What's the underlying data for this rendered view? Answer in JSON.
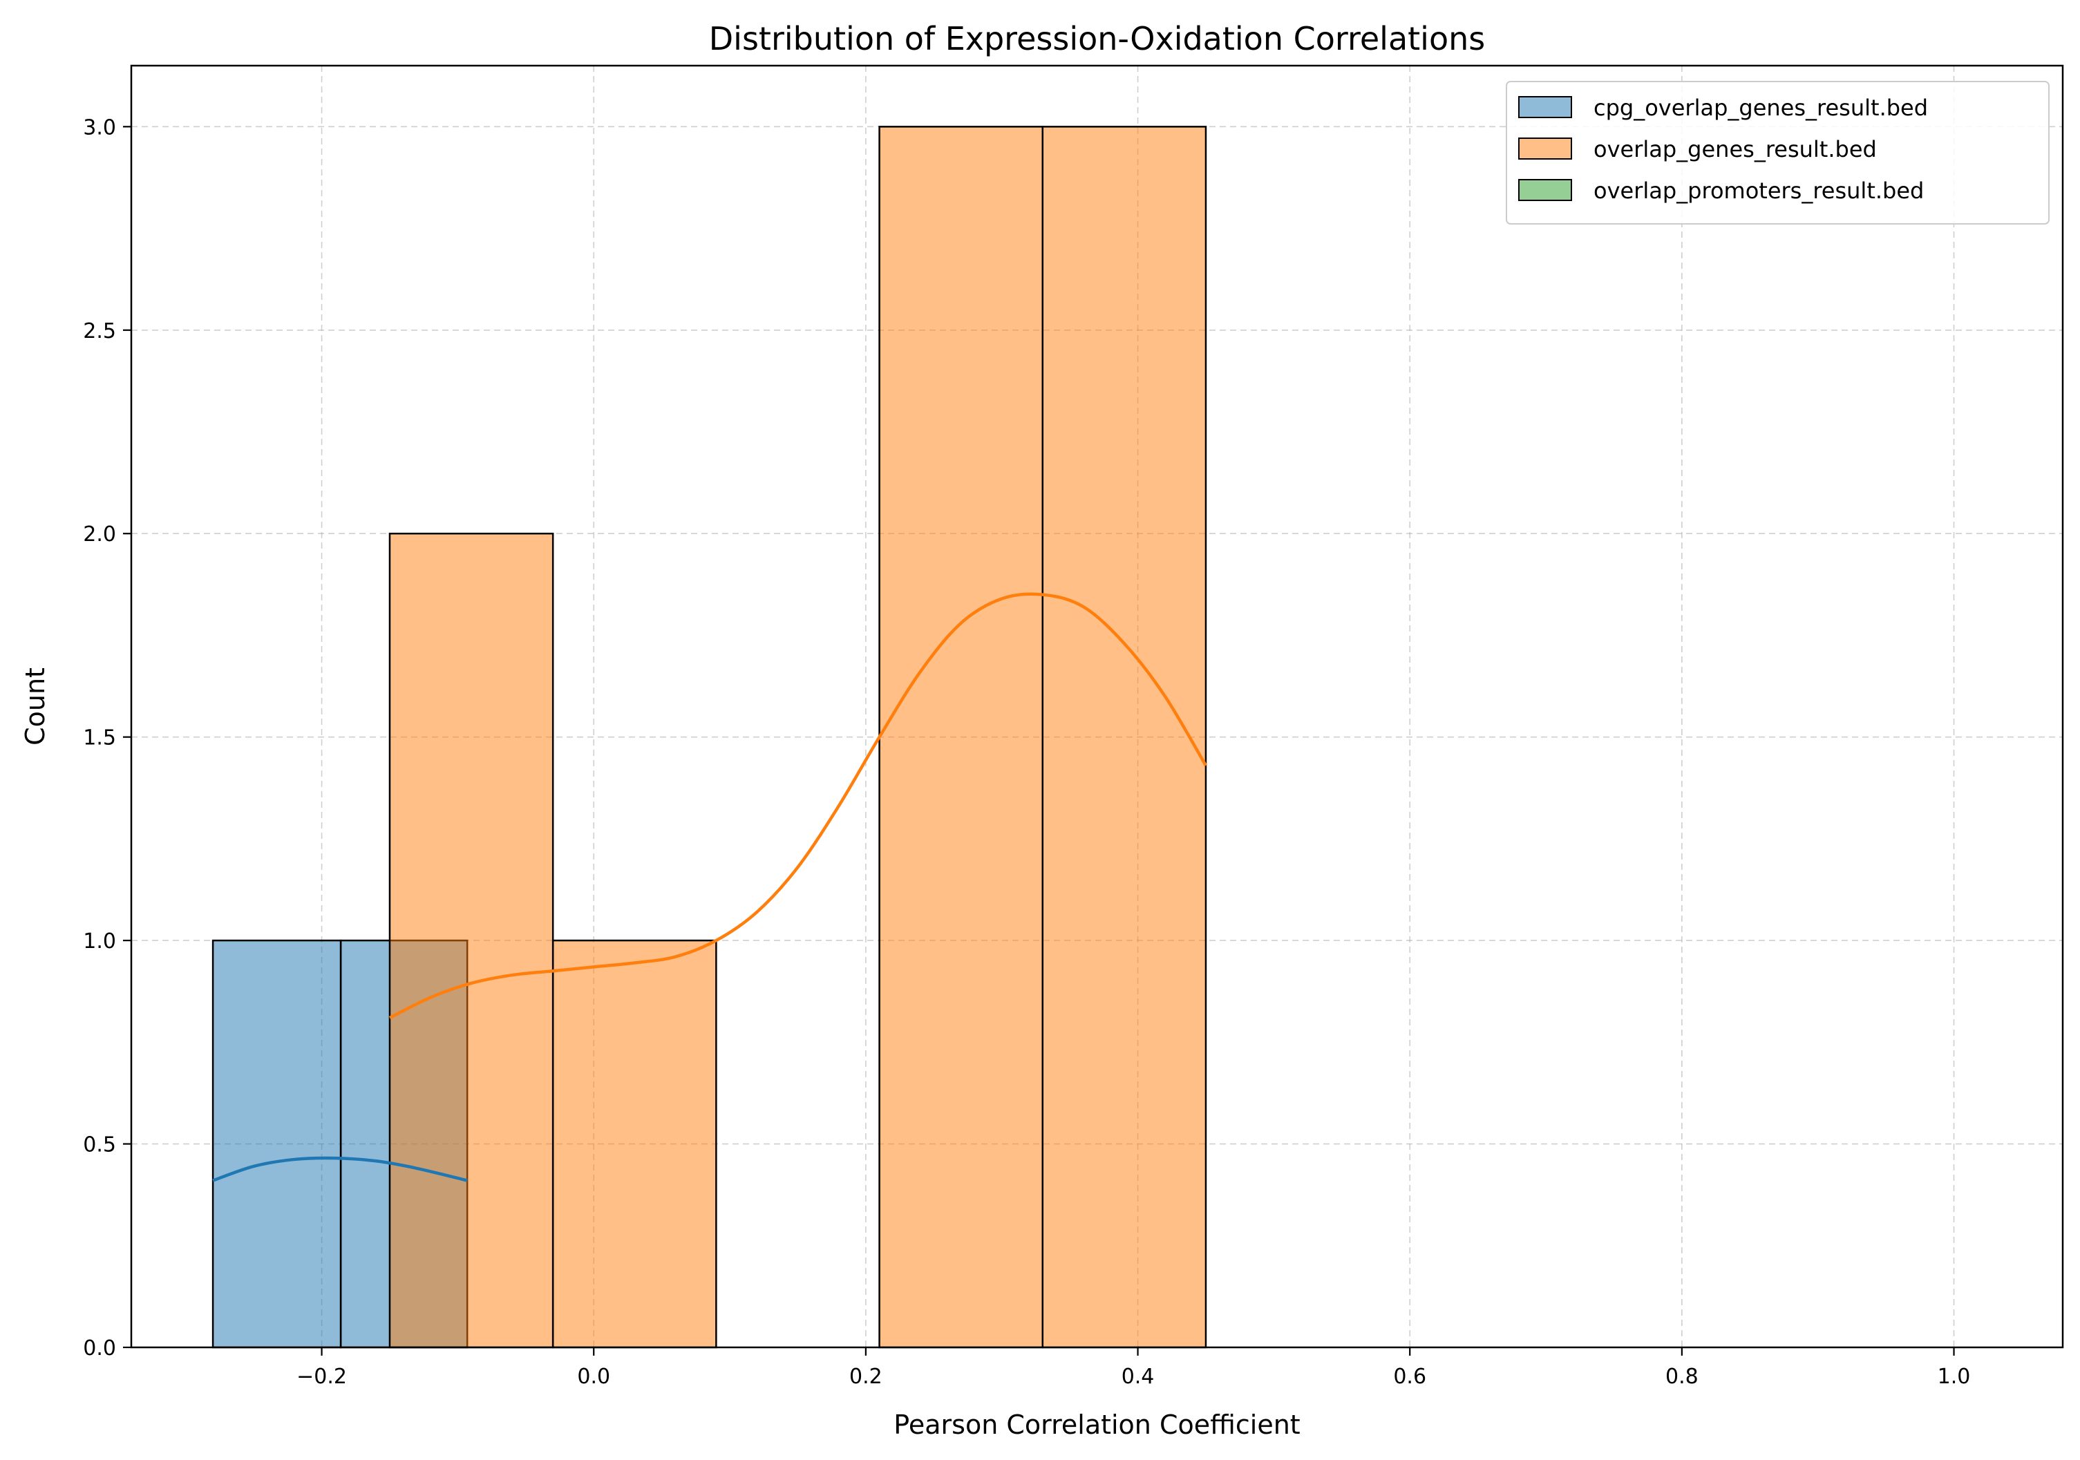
{
  "chart_data": {
    "type": "bar",
    "subtype": "histogram-with-kde",
    "title": "Distribution of Expression-Oxidation Correlations",
    "xlabel": "Pearson Correlation Coefficient",
    "ylabel": "Count",
    "xlim": [
      -0.34,
      1.08
    ],
    "ylim": [
      0,
      3.15
    ],
    "xticks": [
      -0.2,
      0.0,
      0.2,
      0.4,
      0.6,
      0.8,
      1.0
    ],
    "xtick_labels": [
      "−0.2",
      "0.0",
      "0.2",
      "0.4",
      "0.6",
      "0.8",
      "1.0"
    ],
    "yticks": [
      0.0,
      0.5,
      1.0,
      1.5,
      2.0,
      2.5,
      3.0
    ],
    "ytick_labels": [
      "0.0",
      "0.5",
      "1.0",
      "1.5",
      "2.0",
      "2.5",
      "3.0"
    ],
    "grid": true,
    "legend_position": "upper right",
    "series": [
      {
        "name": "cpg_overlap_genes_result.bed",
        "color": "#1f77b4",
        "bins": [
          {
            "x0": -0.28,
            "x1": -0.186,
            "count": 1
          },
          {
            "x0": -0.186,
            "x1": -0.093,
            "count": 1
          }
        ],
        "kde": {
          "x": [
            -0.28,
            -0.25,
            -0.22,
            -0.19,
            -0.16,
            -0.13,
            -0.093
          ],
          "y": [
            0.41,
            0.445,
            0.462,
            0.465,
            0.458,
            0.44,
            0.41
          ]
        }
      },
      {
        "name": "overlap_genes_result.bed",
        "color": "#ff7f0e",
        "bins": [
          {
            "x0": -0.15,
            "x1": -0.03,
            "count": 2
          },
          {
            "x0": -0.03,
            "x1": 0.09,
            "count": 1
          },
          {
            "x0": 0.09,
            "x1": 0.21,
            "count": 0
          },
          {
            "x0": 0.21,
            "x1": 0.33,
            "count": 3
          },
          {
            "x0": 0.33,
            "x1": 0.45,
            "count": 3
          }
        ],
        "kde": {
          "x": [
            -0.15,
            -0.12,
            -0.09,
            -0.06,
            -0.03,
            0.0,
            0.03,
            0.06,
            0.09,
            0.12,
            0.15,
            0.18,
            0.21,
            0.24,
            0.27,
            0.3,
            0.33,
            0.36,
            0.39,
            0.42,
            0.45
          ],
          "y": [
            0.81,
            0.86,
            0.895,
            0.915,
            0.925,
            0.935,
            0.945,
            0.96,
            1.0,
            1.07,
            1.18,
            1.33,
            1.5,
            1.66,
            1.78,
            1.84,
            1.85,
            1.82,
            1.73,
            1.6,
            1.43
          ]
        }
      },
      {
        "name": "overlap_promoters_result.bed",
        "color": "#2ca02c",
        "bins": [],
        "kde": null
      }
    ]
  }
}
